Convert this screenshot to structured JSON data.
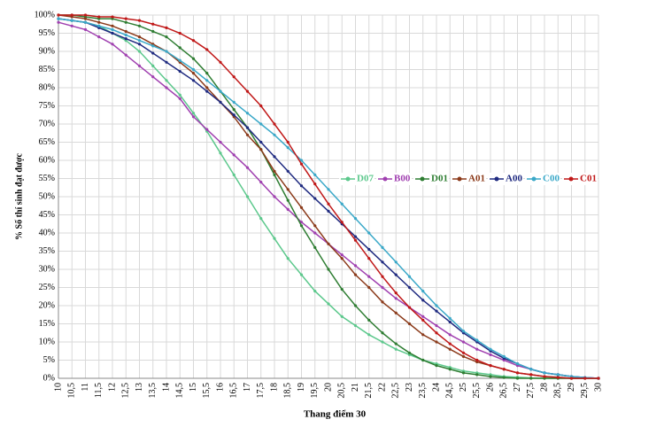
{
  "chart_data": {
    "type": "line",
    "x_label": "Thang điểm 30",
    "y_label": "% Số thí sinh đạt được",
    "x": [
      10,
      10.5,
      11,
      11.5,
      12,
      12.5,
      13,
      13.5,
      14,
      14.5,
      15,
      15.5,
      16,
      16.5,
      17,
      17.5,
      18,
      18.5,
      19,
      19.5,
      20,
      20.5,
      21,
      21.5,
      22,
      22.5,
      23,
      23.5,
      24,
      24.5,
      25,
      25.5,
      26,
      26.5,
      27,
      27.5,
      28,
      28.5,
      29,
      29.5,
      30
    ],
    "xlim": [
      10,
      30
    ],
    "xticks": [
      10,
      {
        "value": 10.5,
        "label": "10,5"
      },
      11,
      {
        "value": 11.5,
        "label": "11,5"
      },
      12,
      {
        "value": 12.5,
        "label": "12,5"
      },
      13,
      {
        "value": 13.5,
        "label": "13,5"
      },
      14,
      {
        "value": 14.5,
        "label": "14,5"
      },
      15,
      {
        "value": 15.5,
        "label": "15,5"
      },
      16,
      {
        "value": 16.5,
        "label": "16,5"
      },
      17,
      {
        "value": 17.5,
        "label": "17,5"
      },
      18,
      {
        "value": 18.5,
        "label": "18,5"
      },
      19,
      {
        "value": 19.5,
        "label": "19,5"
      },
      20,
      {
        "value": 20.5,
        "label": "20,5"
      },
      21,
      {
        "value": 21.5,
        "label": "21,5"
      },
      22,
      {
        "value": 22.5,
        "label": "22,5"
      },
      23,
      {
        "value": 23.5,
        "label": "23,5"
      },
      24,
      {
        "value": 24.5,
        "label": "24,5"
      },
      25,
      {
        "value": 25.5,
        "label": "25,5"
      },
      26,
      {
        "value": 26.5,
        "label": "26,5"
      },
      27,
      {
        "value": 27.5,
        "label": "27,5"
      },
      28,
      {
        "value": 28.5,
        "label": "28,5"
      },
      29,
      {
        "value": 29.5,
        "label": "29,5"
      },
      30
    ],
    "ylim": [
      0,
      100
    ],
    "yticks": [
      {
        "value": 0,
        "label": "0%"
      },
      {
        "value": 5,
        "label": "5%"
      },
      {
        "value": 10,
        "label": "10%"
      },
      {
        "value": 15,
        "label": "15%"
      },
      {
        "value": 20,
        "label": "20%"
      },
      {
        "value": 25,
        "label": "25%"
      },
      {
        "value": 30,
        "label": "30%"
      },
      {
        "value": 35,
        "label": "35%"
      },
      {
        "value": 40,
        "label": "40%"
      },
      {
        "value": 45,
        "label": "45%"
      },
      {
        "value": 50,
        "label": "50%"
      },
      {
        "value": 55,
        "label": "55%"
      },
      {
        "value": 60,
        "label": "60%"
      },
      {
        "value": 65,
        "label": "65%"
      },
      {
        "value": 70,
        "label": "70%"
      },
      {
        "value": 75,
        "label": "75%"
      },
      {
        "value": 80,
        "label": "80%"
      },
      {
        "value": 85,
        "label": "85%"
      },
      {
        "value": 90,
        "label": "90%"
      },
      {
        "value": 95,
        "label": "95%"
      },
      {
        "value": 100,
        "label": "100%"
      }
    ],
    "grid": true,
    "series": [
      {
        "name": "D07",
        "color": "#5cc88c",
        "values": [
          99,
          98.5,
          98,
          97,
          95,
          93,
          90,
          86,
          82,
          78,
          73,
          68,
          62,
          56,
          50,
          44,
          38.5,
          33,
          28.5,
          24,
          20.5,
          17,
          14.5,
          12,
          10,
          8,
          6.5,
          5,
          4,
          3,
          2,
          1.5,
          1,
          0.5,
          0.3,
          0.1,
          0,
          0,
          0,
          0,
          0
        ]
      },
      {
        "name": "B00",
        "color": "#a040b0",
        "values": [
          98,
          97,
          96,
          94,
          92,
          89,
          86,
          83,
          80,
          77,
          72,
          68.5,
          65,
          61.5,
          58,
          54,
          50,
          46.5,
          43,
          40,
          37,
          34,
          31,
          28,
          25,
          22,
          19.5,
          17,
          14.5,
          12,
          10,
          8,
          6.5,
          5,
          3.5,
          2.5,
          1.5,
          1,
          0.5,
          0.2,
          0
        ]
      },
      {
        "name": "D01",
        "color": "#2e7d32",
        "values": [
          100,
          100,
          99.5,
          99,
          99,
          98,
          97,
          95.5,
          94,
          91,
          88,
          84,
          79,
          74,
          69,
          63,
          56,
          49,
          42,
          36,
          30,
          24.5,
          20,
          16,
          12.5,
          9.5,
          7,
          5,
          3.5,
          2.5,
          1.5,
          1,
          0.5,
          0.2,
          0,
          0,
          0,
          0,
          0,
          0,
          0
        ]
      },
      {
        "name": "A01",
        "color": "#8b3a1a",
        "values": [
          100,
          99.5,
          99,
          98,
          97,
          95.5,
          94,
          92,
          90,
          87,
          84,
          80,
          76,
          72,
          67,
          63,
          57,
          52,
          47,
          42,
          37,
          33,
          28.5,
          25,
          21,
          18,
          15,
          12,
          10,
          8,
          6,
          4.5,
          3.5,
          2.5,
          1.5,
          1,
          0.5,
          0.3,
          0,
          0,
          0
        ]
      },
      {
        "name": "A00",
        "color": "#1f2a80",
        "values": [
          99,
          98.5,
          98,
          96.5,
          95,
          93.5,
          92,
          89.5,
          87,
          84.5,
          82,
          79,
          76,
          72.5,
          69,
          65,
          61,
          57,
          53,
          49.5,
          46,
          42.5,
          39,
          35.5,
          32,
          28.5,
          25,
          21.5,
          18.5,
          15.5,
          12.5,
          10,
          7.5,
          5.5,
          4,
          2.5,
          1.5,
          1,
          0.5,
          0.2,
          0
        ]
      },
      {
        "name": "C00",
        "color": "#3aa8c8",
        "values": [
          99,
          98.5,
          98,
          97,
          96,
          94.5,
          93,
          91.5,
          90,
          87.5,
          85,
          82,
          79,
          76,
          73,
          70,
          67,
          63.5,
          60,
          56,
          52,
          48,
          44,
          40,
          36,
          32,
          28,
          24,
          20,
          16.5,
          13,
          10.5,
          8,
          6,
          4,
          2.5,
          1.5,
          1,
          0.5,
          0.2,
          0
        ]
      },
      {
        "name": "C01",
        "color": "#c01818",
        "values": [
          100,
          100,
          100,
          99.5,
          99.5,
          99,
          98.5,
          97.5,
          96.5,
          95,
          93,
          90.5,
          87,
          83,
          79,
          75,
          70,
          65,
          59,
          53.5,
          48,
          43,
          38,
          33,
          28,
          23.5,
          19.5,
          16,
          12.5,
          9.5,
          7,
          5,
          3.5,
          2.5,
          1.5,
          1,
          0.5,
          0.2,
          0,
          0,
          0
        ]
      }
    ]
  }
}
